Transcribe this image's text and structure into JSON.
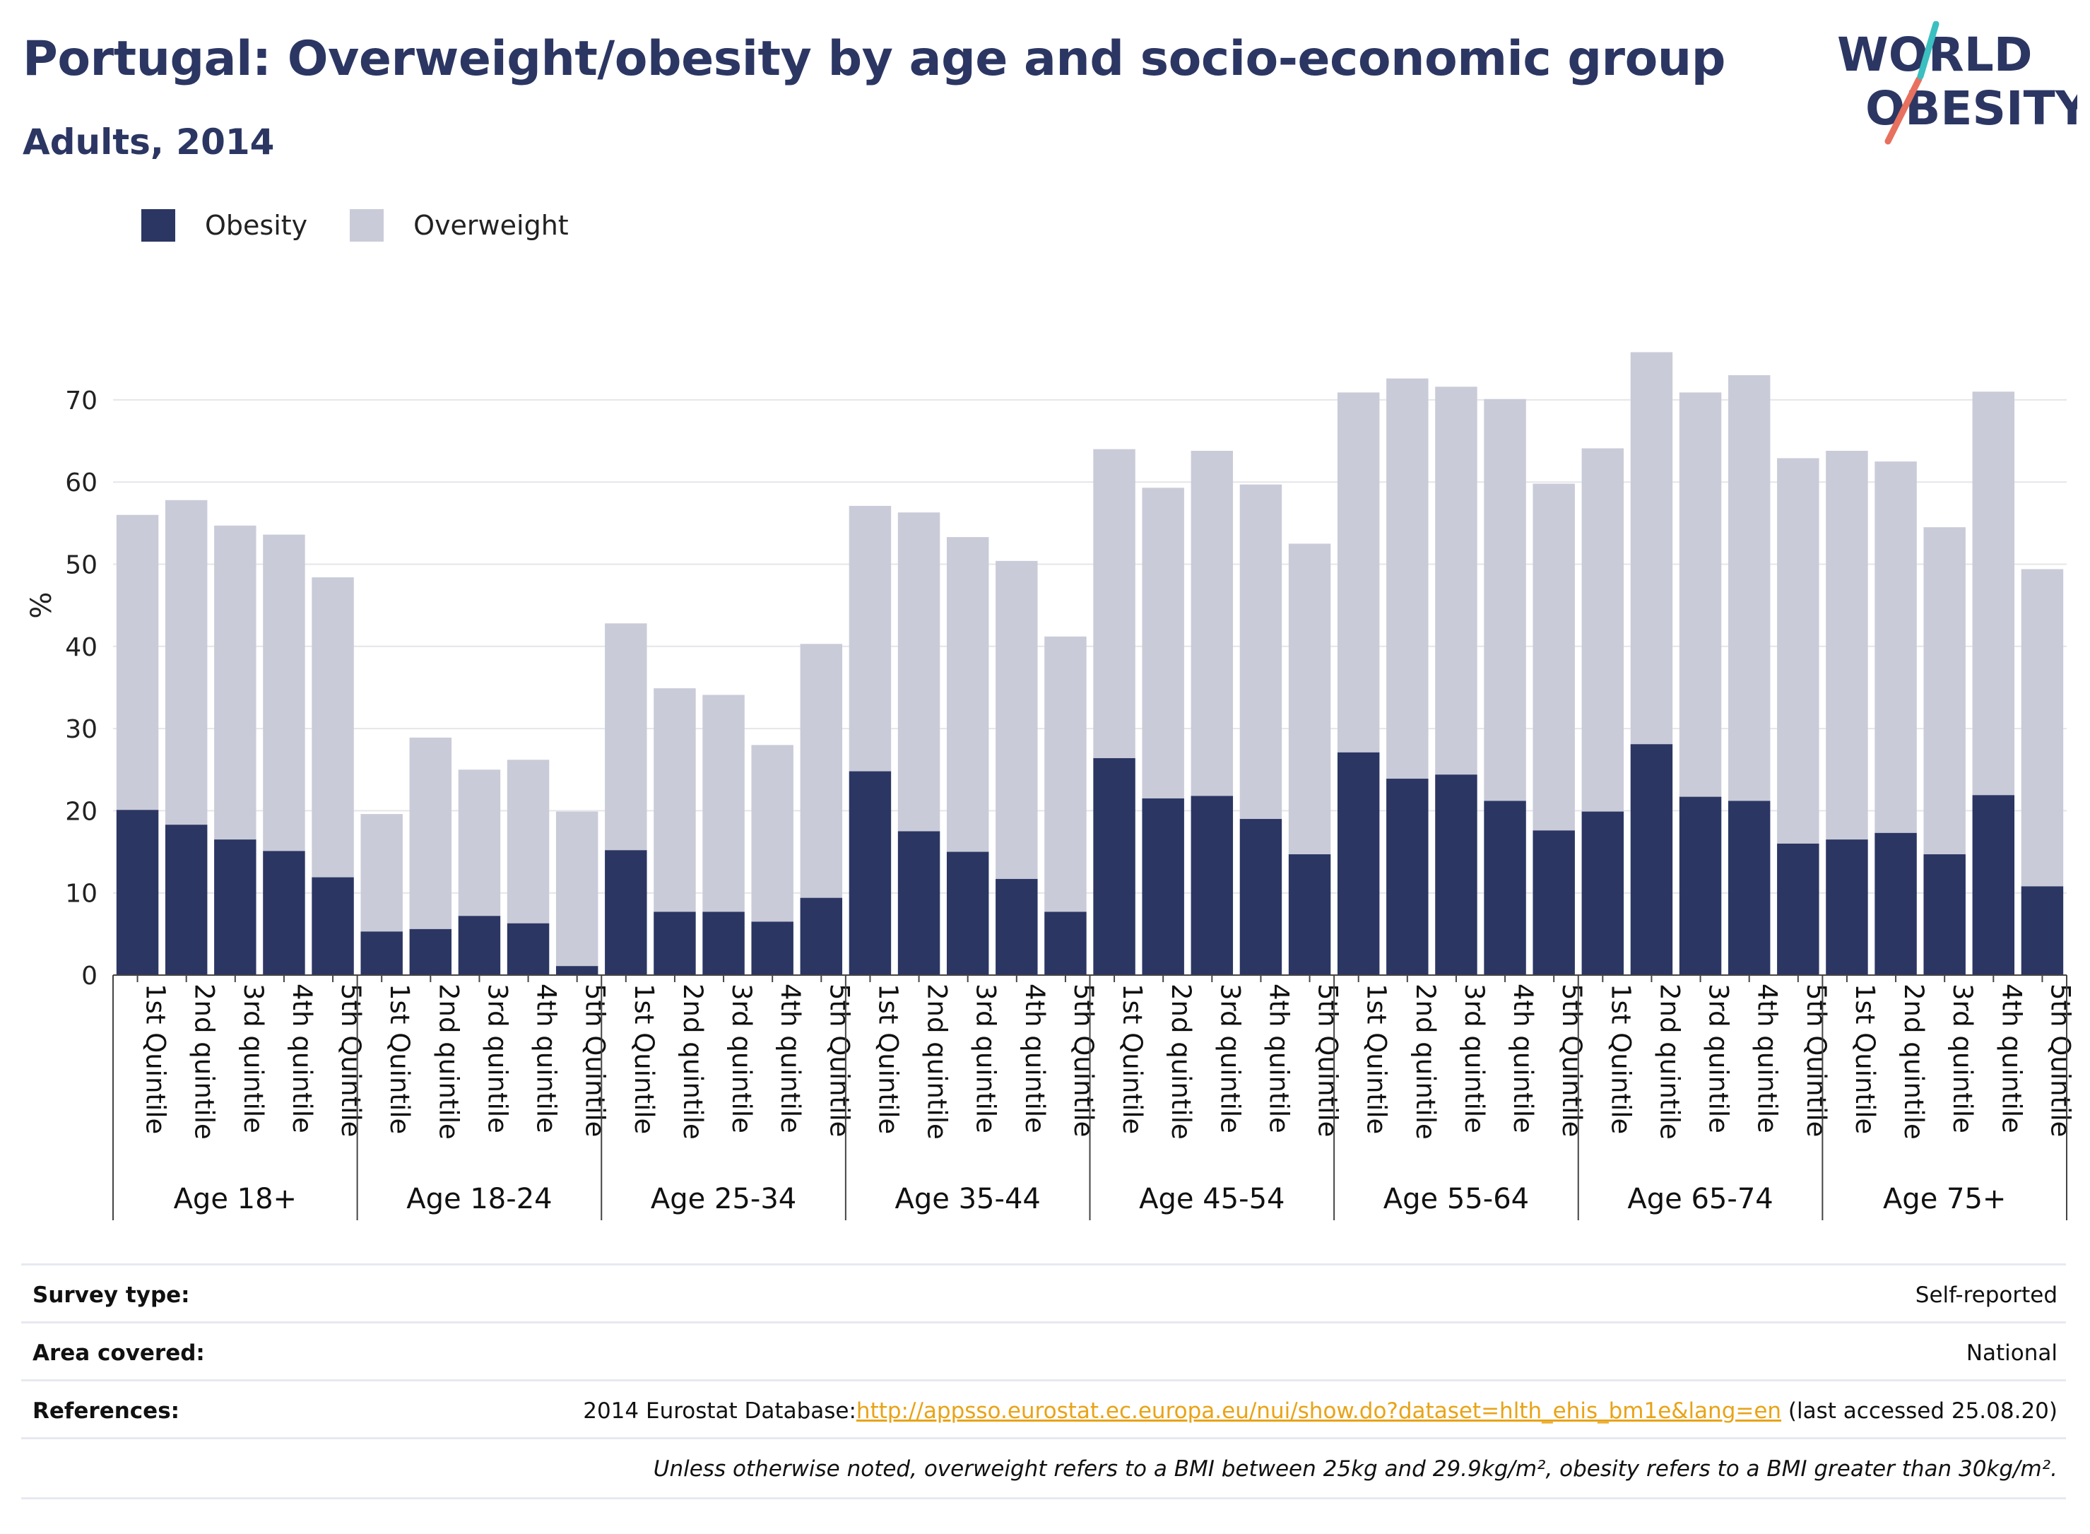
{
  "title": "Portugal: Overweight/obesity by age and socio-economic group",
  "subtitle": "Adults, 2014",
  "logo": {
    "line1": "WORLD",
    "line2": "OBESITY"
  },
  "legend": [
    {
      "label": "Obesity",
      "color": "#2b3663"
    },
    {
      "label": "Overweight",
      "color": "#c9cbd8"
    }
  ],
  "chart_data": {
    "type": "bar",
    "stacked": true,
    "ylabel": "%",
    "ylim": [
      0,
      80
    ],
    "yticks": [
      0,
      10,
      20,
      30,
      40,
      50,
      60,
      70
    ],
    "grid": true,
    "legend_position": "top-left",
    "groups": [
      {
        "label": "Age 18+",
        "categories": [
          "1st Quintile",
          "2nd quintile",
          "3rd quintile",
          "4th quintile",
          "5th Quintile"
        ],
        "obesity": [
          20.1,
          18.3,
          16.5,
          15.1,
          11.9
        ],
        "total": [
          56.0,
          57.8,
          54.7,
          53.6,
          48.4
        ]
      },
      {
        "label": "Age 18-24",
        "categories": [
          "1st Quintile",
          "2nd quintile",
          "3rd quintile",
          "4th quintile",
          "5th Quintile"
        ],
        "obesity": [
          5.3,
          5.6,
          7.2,
          6.3,
          1.1
        ],
        "total": [
          19.6,
          28.9,
          25.0,
          26.2,
          19.9
        ]
      },
      {
        "label": "Age 25-34",
        "categories": [
          "1st Quintile",
          "2nd quintile",
          "3rd quintile",
          "4th quintile",
          "5th Quintile"
        ],
        "obesity": [
          15.2,
          7.7,
          7.7,
          6.5,
          9.4
        ],
        "total": [
          42.8,
          34.9,
          34.1,
          28.0,
          40.3
        ]
      },
      {
        "label": "Age 35-44",
        "categories": [
          "1st Quintile",
          "2nd quintile",
          "3rd quintile",
          "4th quintile",
          "5th Quintile"
        ],
        "obesity": [
          24.8,
          17.5,
          15.0,
          11.7,
          7.7
        ],
        "total": [
          57.1,
          56.3,
          53.3,
          50.4,
          41.2
        ]
      },
      {
        "label": "Age 45-54",
        "categories": [
          "1st Quintile",
          "2nd quintile",
          "3rd quintile",
          "4th quintile",
          "5th Quintile"
        ],
        "obesity": [
          26.4,
          21.5,
          21.8,
          19.0,
          14.7
        ],
        "total": [
          64.0,
          59.3,
          63.8,
          59.7,
          52.5
        ]
      },
      {
        "label": "Age 55-64",
        "categories": [
          "1st Quintile",
          "2nd quintile",
          "3rd quintile",
          "4th quintile",
          "5th Quintile"
        ],
        "obesity": [
          27.1,
          23.9,
          24.4,
          21.2,
          17.6
        ],
        "total": [
          70.9,
          72.6,
          71.6,
          70.1,
          59.8
        ]
      },
      {
        "label": "Age 65-74",
        "categories": [
          "1st Quintile",
          "2nd quintile",
          "3rd quintile",
          "4th quintile",
          "5th Quintile"
        ],
        "obesity": [
          19.9,
          28.1,
          21.7,
          21.2,
          16.0
        ],
        "total": [
          64.1,
          75.8,
          70.9,
          73.0,
          62.9
        ]
      },
      {
        "label": "Age 75+",
        "categories": [
          "1st Quintile",
          "2nd quintile",
          "3rd quintile",
          "4th quintile",
          "5th Quintile"
        ],
        "obesity": [
          16.5,
          17.3,
          14.7,
          21.9,
          10.8
        ],
        "total": [
          63.8,
          62.5,
          54.5,
          71.0,
          49.4
        ]
      }
    ]
  },
  "info": {
    "survey_type_label": "Survey type:",
    "survey_type_value": "Self-reported",
    "area_label": "Area covered:",
    "area_value": "National",
    "references_label": "References:",
    "references_prefix": "2014 Eurostat Database:",
    "references_link": "http://appsso.eurostat.ec.europa.eu/nui/show.do?dataset=hlth_ehis_bm1e&lang=en",
    "references_suffix": " (last accessed 25.08.20)",
    "note": "Unless otherwise noted, overweight refers to a BMI between 25kg and 29.9kg/m², obesity refers to a BMI greater than 30kg/m²."
  }
}
